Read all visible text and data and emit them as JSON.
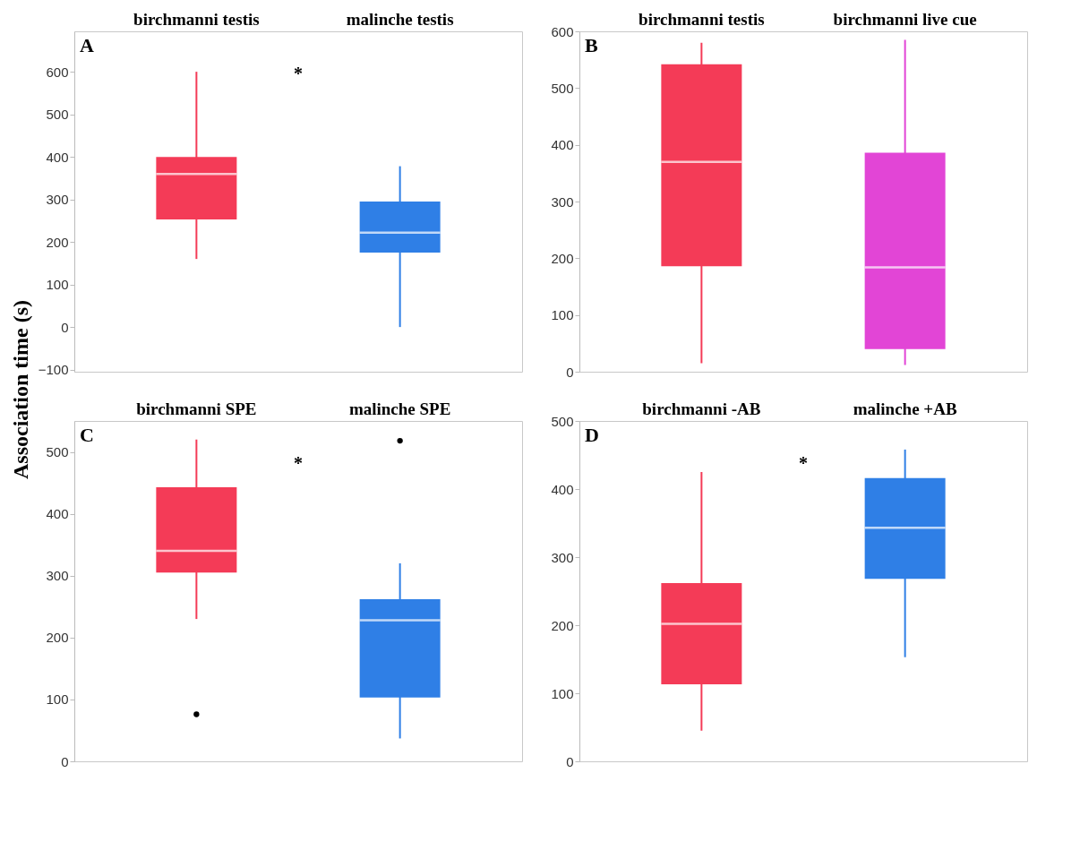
{
  "chart_data": [
    {
      "type": "box",
      "ylabel": "Association time (s)",
      "categories": [
        "birchmanni testis",
        "malinche testis"
      ],
      "colors": [
        "#f43b57",
        "#2f7fe6"
      ],
      "ylim": [
        -105,
        695
      ],
      "yticks": [
        -100,
        0,
        100,
        200,
        300,
        400,
        500,
        600
      ],
      "grid": false,
      "annotations": [
        "A",
        "*"
      ],
      "boxes": [
        {
          "low": 160,
          "q1": 253,
          "median": 360,
          "q3": 400,
          "high": 600
        },
        {
          "low": 0,
          "q1": 175,
          "median": 222,
          "q3": 295,
          "high": 378
        }
      ]
    },
    {
      "type": "box",
      "categories": [
        "birchmanni testis",
        "birchmanni live cue"
      ],
      "colors": [
        "#f43b57",
        "#e245d6"
      ],
      "ylim": [
        0,
        600
      ],
      "yticks": [
        0,
        100,
        200,
        300,
        400,
        500,
        600
      ],
      "grid": false,
      "annotations": [
        "B"
      ],
      "boxes": [
        {
          "low": 15,
          "q1": 186,
          "median": 370,
          "q3": 542,
          "high": 580
        },
        {
          "low": 12,
          "q1": 40,
          "median": 184,
          "q3": 386,
          "high": 585
        }
      ]
    },
    {
      "type": "box",
      "categories": [
        "birchmanni SPE",
        "malinche SPE"
      ],
      "colors": [
        "#f43b57",
        "#2f7fe6"
      ],
      "ylim": [
        0,
        550
      ],
      "yticks": [
        0,
        100,
        200,
        300,
        400,
        500
      ],
      "grid": false,
      "annotations": [
        "C",
        "*"
      ],
      "boxes": [
        {
          "low": 230,
          "q1": 305,
          "median": 340,
          "q3": 443,
          "high": 520,
          "outliers": [
            76
          ]
        },
        {
          "low": 37,
          "q1": 103,
          "median": 228,
          "q3": 262,
          "high": 320,
          "outliers": [
            518
          ]
        }
      ]
    },
    {
      "type": "box",
      "categories": [
        "birchmanni -AB",
        "malinche +AB"
      ],
      "colors": [
        "#f43b57",
        "#2f7fe6"
      ],
      "ylim": [
        0,
        500
      ],
      "yticks": [
        0,
        100,
        200,
        300,
        400,
        500
      ],
      "grid": false,
      "annotations": [
        "D",
        "*"
      ],
      "boxes": [
        {
          "low": 45,
          "q1": 113,
          "median": 202,
          "q3": 262,
          "high": 425
        },
        {
          "low": 153,
          "q1": 268,
          "median": 343,
          "q3": 416,
          "high": 458
        }
      ]
    }
  ]
}
